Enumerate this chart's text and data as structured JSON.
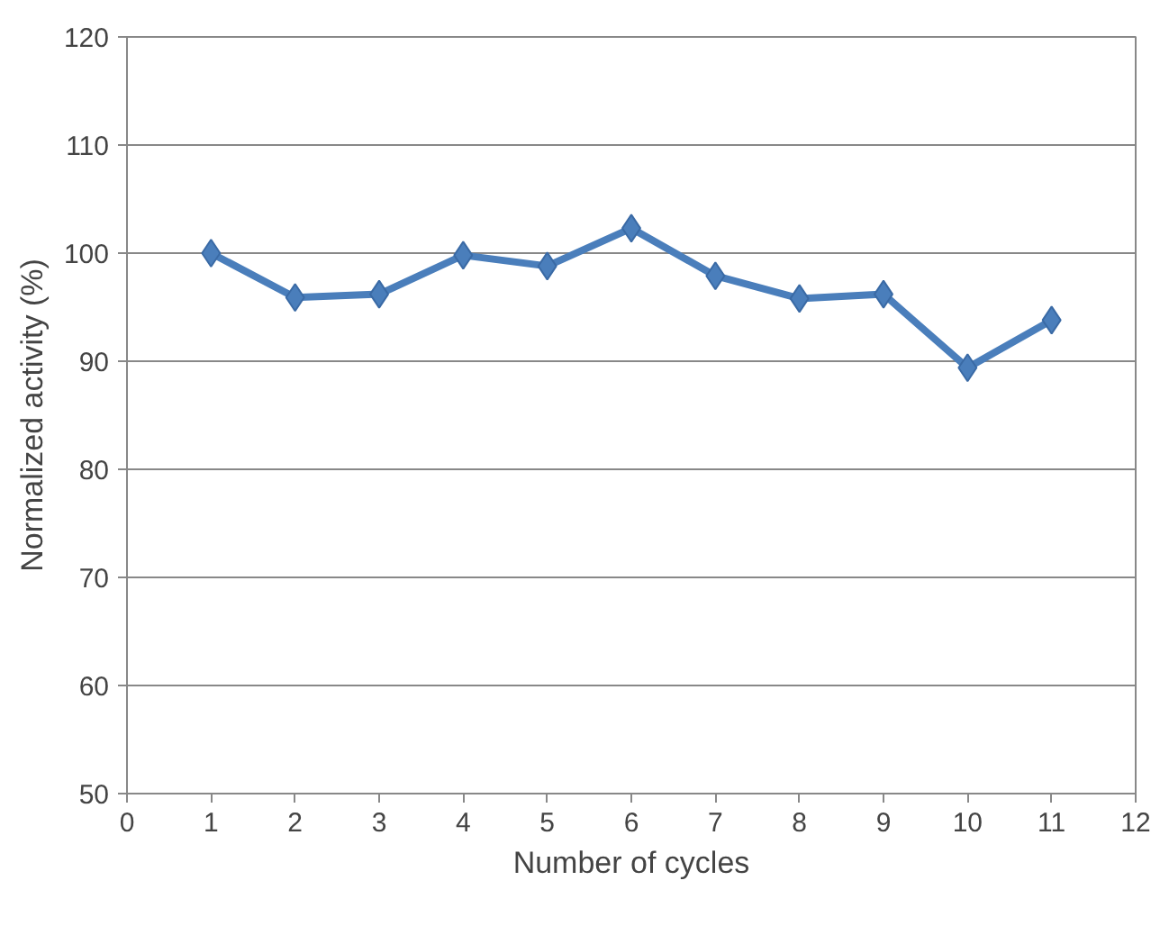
{
  "chart_data": {
    "type": "line",
    "xlabel": "Number of cycles",
    "ylabel": "Normalized activity (%)",
    "x": [
      1,
      2,
      3,
      4,
      5,
      6,
      7,
      8,
      9,
      10,
      11
    ],
    "series": [
      {
        "color": "#4a7ebb",
        "values": [
          100,
          95.9,
          96.2,
          99.8,
          98.8,
          102.3,
          97.9,
          95.8,
          96.2,
          89.4,
          93.8
        ]
      }
    ],
    "xlim": [
      0,
      12
    ],
    "xticks": [
      0,
      1,
      2,
      3,
      4,
      5,
      6,
      7,
      8,
      9,
      10,
      11,
      12
    ],
    "ylim": [
      50,
      120
    ],
    "yticks": [
      50,
      60,
      70,
      80,
      90,
      100,
      110,
      120
    ],
    "grid": "y",
    "marker": "diamond",
    "line_style": "solid"
  }
}
